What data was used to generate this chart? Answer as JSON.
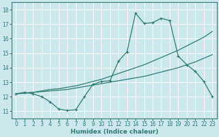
{
  "xlabel": "Humidex (Indice chaleur)",
  "xlim": [
    -0.5,
    23.5
  ],
  "ylim": [
    10.5,
    18.5
  ],
  "xticks": [
    0,
    1,
    2,
    3,
    4,
    5,
    6,
    7,
    8,
    9,
    10,
    11,
    12,
    13,
    14,
    15,
    16,
    17,
    18,
    19,
    20,
    21,
    22,
    23
  ],
  "yticks": [
    11,
    12,
    13,
    14,
    15,
    16,
    17,
    18
  ],
  "bg_color": "#cce8ed",
  "line_color": "#2d7a72",
  "grid_color": "#b0d8de",
  "curve_upper_x": [
    0,
    1,
    2,
    3,
    4,
    5,
    6,
    7,
    8,
    9,
    10,
    11,
    12,
    13,
    14,
    15,
    16,
    17,
    18,
    19,
    20,
    21,
    22,
    23
  ],
  "curve_upper_y": [
    12.2,
    12.3,
    12.2,
    12.0,
    11.65,
    11.15,
    11.05,
    11.1,
    12.0,
    12.85,
    13.05,
    13.1,
    14.45,
    15.1,
    17.75,
    17.05,
    17.1,
    17.4,
    17.25,
    14.8,
    14.2,
    13.75,
    13.05,
    12.0
  ],
  "curve_mid_x": [
    0,
    1,
    2,
    3,
    4,
    5,
    6,
    7,
    8,
    9,
    10,
    11,
    12,
    13,
    14,
    15,
    16,
    17,
    18,
    19,
    20,
    21,
    22,
    23
  ],
  "curve_mid_y": [
    12.2,
    12.25,
    12.3,
    12.4,
    12.5,
    12.55,
    12.65,
    12.75,
    12.9,
    13.05,
    13.2,
    13.4,
    13.6,
    13.8,
    14.0,
    14.2,
    14.45,
    14.7,
    14.95,
    15.2,
    15.5,
    15.8,
    16.1,
    16.5
  ],
  "curve_low_x": [
    0,
    1,
    2,
    3,
    4,
    5,
    6,
    7,
    8,
    9,
    10,
    11,
    12,
    13,
    14,
    15,
    16,
    17,
    18,
    19,
    20,
    21,
    22,
    23
  ],
  "curve_low_y": [
    12.2,
    12.25,
    12.3,
    12.35,
    12.4,
    12.45,
    12.5,
    12.6,
    12.7,
    12.8,
    12.9,
    13.0,
    13.1,
    13.2,
    13.3,
    13.4,
    13.55,
    13.7,
    13.85,
    14.0,
    14.2,
    14.4,
    14.65,
    14.9
  ]
}
